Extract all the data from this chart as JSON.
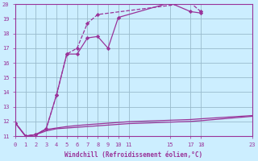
{
  "xlabel": "Windchill (Refroidissement éolien,°C)",
  "bg_color": "#cceeff",
  "grid_color": "#99bbcc",
  "line_color": "#993399",
  "xlim": [
    0,
    23
  ],
  "ylim": [
    11,
    20
  ],
  "xticks": [
    0,
    1,
    2,
    3,
    4,
    5,
    6,
    7,
    8,
    9,
    10,
    11,
    15,
    17,
    18,
    23
  ],
  "yticks": [
    11,
    12,
    13,
    14,
    15,
    16,
    17,
    18,
    19,
    20
  ],
  "line1_x": [
    0,
    1,
    2,
    3,
    4,
    5,
    6,
    7,
    8,
    17,
    18
  ],
  "line1_y": [
    11.9,
    11.0,
    11.1,
    11.5,
    13.8,
    16.6,
    17.0,
    18.7,
    19.3,
    20.1,
    19.5
  ],
  "line1_style": "--",
  "line2_x": [
    0,
    1,
    2,
    3,
    4,
    5,
    6,
    7,
    8,
    9,
    10,
    15,
    17,
    18
  ],
  "line2_y": [
    11.9,
    11.0,
    11.1,
    11.5,
    13.8,
    16.6,
    16.6,
    17.7,
    17.8,
    17.0,
    19.1,
    20.1,
    19.5,
    19.4
  ],
  "line2_style": "-",
  "line3_x": [
    0,
    1,
    2,
    3,
    4,
    5,
    6,
    7,
    8,
    9,
    10,
    11,
    15,
    17,
    18,
    23
  ],
  "line3_y": [
    11.9,
    11.0,
    11.1,
    11.35,
    11.5,
    11.55,
    11.6,
    11.65,
    11.7,
    11.75,
    11.8,
    11.85,
    11.95,
    12.0,
    12.05,
    12.35
  ],
  "line4_x": [
    0,
    1,
    2,
    3,
    4,
    5,
    6,
    7,
    8,
    9,
    10,
    11,
    15,
    17,
    18,
    23
  ],
  "line4_y": [
    11.9,
    11.0,
    11.1,
    11.45,
    11.55,
    11.65,
    11.72,
    11.78,
    11.83,
    11.88,
    11.93,
    11.98,
    12.08,
    12.13,
    12.18,
    12.4
  ]
}
